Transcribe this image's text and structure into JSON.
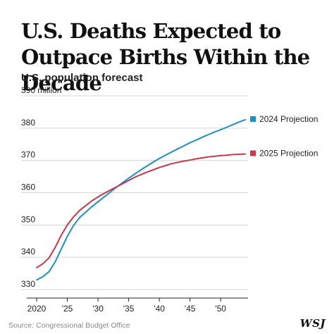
{
  "title": "U.S. Deaths Expected to Outpace Births Within the Decade",
  "subtitle": "U.S. population forecast",
  "source": "Source: Congressional Budget Office",
  "logo": "WSJ",
  "chart_data": {
    "type": "line",
    "ylim": [
      330,
      390
    ],
    "xlim": [
      2020,
      2054
    ],
    "y_ticks": [
      {
        "value": 330,
        "label": "330"
      },
      {
        "value": 340,
        "label": "340"
      },
      {
        "value": 350,
        "label": "350"
      },
      {
        "value": 360,
        "label": "360"
      },
      {
        "value": 370,
        "label": "370"
      },
      {
        "value": 380,
        "label": "380"
      },
      {
        "value": 390,
        "label": "390 million"
      }
    ],
    "x_ticks": [
      {
        "value": 2020,
        "label": "2020"
      },
      {
        "value": 2025,
        "label": "'25"
      },
      {
        "value": 2030,
        "label": "'30"
      },
      {
        "value": 2035,
        "label": "'35"
      },
      {
        "value": 2040,
        "label": "'40"
      },
      {
        "value": 2045,
        "label": "'45"
      },
      {
        "value": 2050,
        "label": "'50"
      }
    ],
    "grid": true,
    "legend_position": "right",
    "series": [
      {
        "name": "2024 Projection",
        "color": "#1f8fc0",
        "x": [
          2020,
          2021,
          2022,
          2023,
          2024,
          2025,
          2026,
          2027,
          2028,
          2029,
          2030,
          2031,
          2032,
          2033,
          2034,
          2035,
          2036,
          2037,
          2038,
          2039,
          2040,
          2041,
          2042,
          2043,
          2044,
          2045,
          2046,
          2047,
          2048,
          2049,
          2050,
          2051,
          2052,
          2053,
          2054
        ],
        "y": [
          333.0,
          334.0,
          335.5,
          338.5,
          342.5,
          346.5,
          349.8,
          352.3,
          354.0,
          355.7,
          357.2,
          358.7,
          360.2,
          361.7,
          363.1,
          364.5,
          365.8,
          367.1,
          368.3,
          369.5,
          370.6,
          371.6,
          372.6,
          373.6,
          374.5,
          375.5,
          376.3,
          377.2,
          378.0,
          378.8,
          379.5,
          380.3,
          381.1,
          381.9,
          382.6
        ]
      },
      {
        "name": "2025 Projection",
        "color": "#c8394a",
        "x": [
          2020,
          2021,
          2022,
          2023,
          2024,
          2025,
          2026,
          2027,
          2028,
          2029,
          2030,
          2031,
          2032,
          2033,
          2034,
          2035,
          2036,
          2037,
          2038,
          2039,
          2040,
          2041,
          2042,
          2043,
          2044,
          2045,
          2046,
          2047,
          2048,
          2049,
          2050,
          2051,
          2052,
          2053,
          2054
        ],
        "y": [
          336.8,
          338.0,
          339.8,
          343.0,
          346.8,
          350.0,
          352.5,
          354.5,
          356.0,
          357.5,
          358.7,
          359.8,
          360.8,
          361.8,
          362.8,
          363.8,
          364.8,
          365.6,
          366.4,
          367.1,
          367.8,
          368.4,
          369.0,
          369.4,
          369.8,
          370.1,
          370.5,
          370.8,
          371.1,
          371.3,
          371.5,
          371.6,
          371.8,
          371.9,
          372.0
        ]
      }
    ]
  }
}
